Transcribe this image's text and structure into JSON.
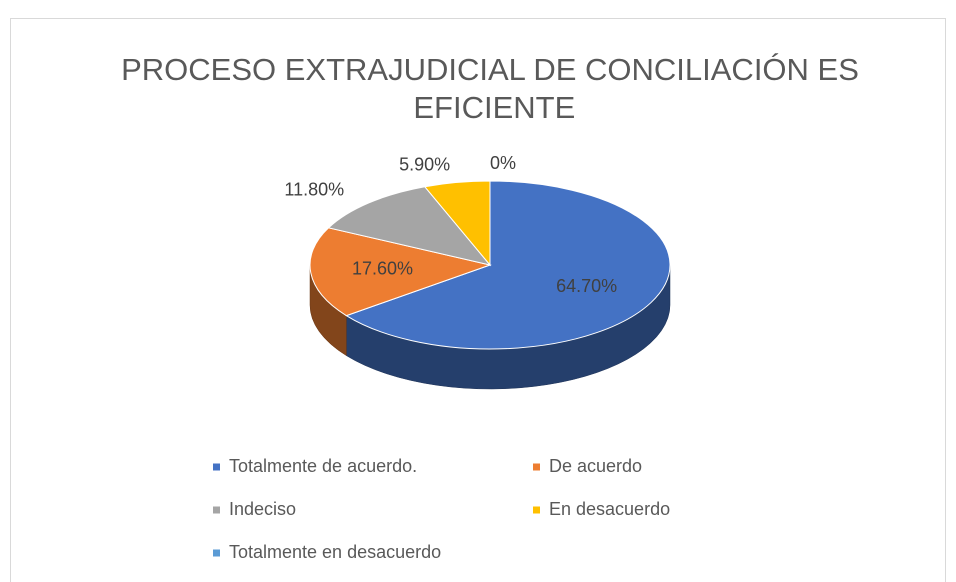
{
  "chart_data": {
    "type": "pie",
    "title": "PROCESO EXTRAJUDICIAL DE CONCILIACIÓN ES EFICIENTE",
    "categories": [
      "Totalmente de acuerdo.",
      "De acuerdo",
      "Indeciso",
      "En desacuerdo",
      "Totalmente en desacuerdo"
    ],
    "values": [
      64.7,
      17.6,
      11.8,
      5.9,
      0
    ],
    "value_labels": [
      "64.70%",
      "17.60%",
      "11.80%",
      "5.90%",
      "0%"
    ],
    "colors": [
      "#4472c4",
      "#ed7d31",
      "#a5a5a5",
      "#ffc000",
      "#5b9bd5"
    ],
    "legend": "bottom"
  }
}
